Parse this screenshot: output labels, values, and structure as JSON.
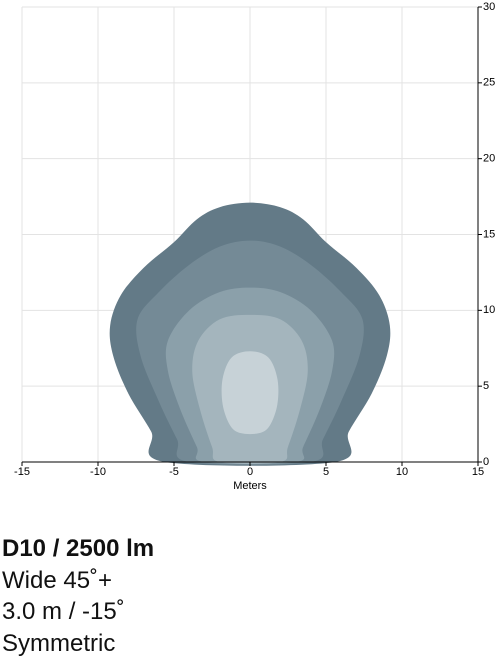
{
  "chart_data": {
    "type": "contour",
    "x_label": "Meters",
    "xlim": [
      -15,
      15
    ],
    "xticks": [
      -15,
      -10,
      -5,
      0,
      5,
      10,
      15
    ],
    "ylim": [
      0,
      30
    ],
    "yticks": [
      0,
      5,
      10,
      15,
      20,
      25,
      30
    ],
    "grid": true,
    "series": [
      {
        "color": "#637a87",
        "x": [
          0,
          2,
          3.5,
          5,
          7,
          8.5,
          9.2,
          9,
          8,
          6.5,
          5.6,
          -5.6,
          -6.5,
          -8,
          -9,
          -9.2,
          -8.5,
          -7,
          -5,
          -3.5,
          -2
        ],
        "y": [
          17.1,
          16.8,
          16,
          14.5,
          12.8,
          11,
          9,
          7,
          4.5,
          2,
          0,
          0,
          2,
          4.5,
          7,
          9,
          11,
          12.8,
          14.5,
          16,
          16.8
        ]
      },
      {
        "color": "#748a96",
        "x": [
          0,
          2,
          4,
          6,
          7.4,
          7.2,
          6,
          4.8,
          4,
          -4,
          -4.8,
          -6,
          -7.2,
          -7.4,
          -6,
          -4,
          -2
        ],
        "y": [
          14.6,
          14.2,
          13,
          11.2,
          9.4,
          7,
          4,
          1.5,
          0,
          0,
          1.5,
          4,
          7,
          9.4,
          11.2,
          13,
          14.2
        ]
      },
      {
        "color": "#8ba0aa",
        "x": [
          0,
          2,
          4,
          5.4,
          5.4,
          4.6,
          3.5,
          3,
          -3,
          -3.5,
          -4.6,
          -5.4,
          -5.4,
          -4,
          -2
        ],
        "y": [
          11.5,
          11.2,
          10,
          8,
          6,
          3.5,
          1,
          0,
          0,
          1,
          3.5,
          6,
          8,
          10,
          11.2
        ]
      },
      {
        "color": "#a4b5bd",
        "x": [
          0,
          2,
          3.4,
          3.8,
          3.3,
          2.5,
          2,
          -2,
          -2.5,
          -3.3,
          -3.8,
          -3.4,
          -2
        ],
        "y": [
          9.7,
          9.4,
          8,
          6,
          3.5,
          1,
          0,
          0,
          1,
          3.5,
          6,
          8,
          9.4
        ]
      },
      {
        "color": "#c7d2d7",
        "x": [
          0,
          1.2,
          1.8,
          1.8,
          1.3,
          0.6,
          -0.6,
          -1.3,
          -1.8,
          -1.8,
          -1.2
        ],
        "y": [
          7.3,
          6.9,
          5.5,
          3.8,
          2.4,
          1.9,
          1.9,
          2.4,
          3.8,
          5.5,
          6.9
        ]
      }
    ]
  },
  "caption": {
    "title": "D10 / 2500 lm",
    "lines": [
      "Wide 45˚+",
      "3.0 m / -15˚",
      "Symmetric"
    ]
  }
}
